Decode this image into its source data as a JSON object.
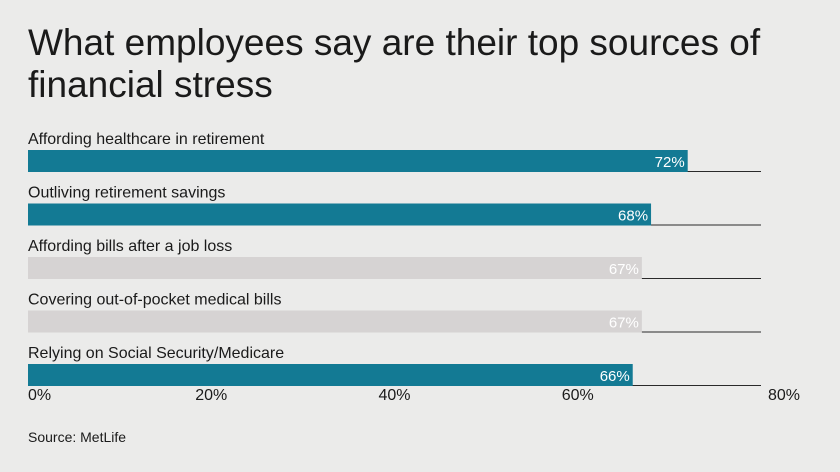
{
  "chart_data": {
    "type": "bar",
    "orientation": "horizontal",
    "title": "What employees say are their top sources of financial stress",
    "categories": [
      "Affording healthcare in retirement",
      "Outliving retirement savings",
      "Affording bills after a job loss",
      "Covering out-of-pocket medical bills",
      "Relying on Social Security/Medicare"
    ],
    "values": [
      72,
      68,
      67,
      67,
      66
    ],
    "value_labels": [
      "72%",
      "68%",
      "67%",
      "67%",
      "66%"
    ],
    "bar_colors": [
      "#137a94",
      "#137a94",
      "#d6d3d3",
      "#d6d3d3",
      "#137a94"
    ],
    "xlim": [
      0,
      80
    ],
    "xticks": [
      0,
      20,
      40,
      60,
      80
    ],
    "xtick_labels": [
      "0%",
      "20%",
      "40%",
      "60%",
      "80%"
    ],
    "xlabel": "",
    "ylabel": "",
    "grid": false,
    "legend": "none"
  },
  "source": "Source: MetLife"
}
